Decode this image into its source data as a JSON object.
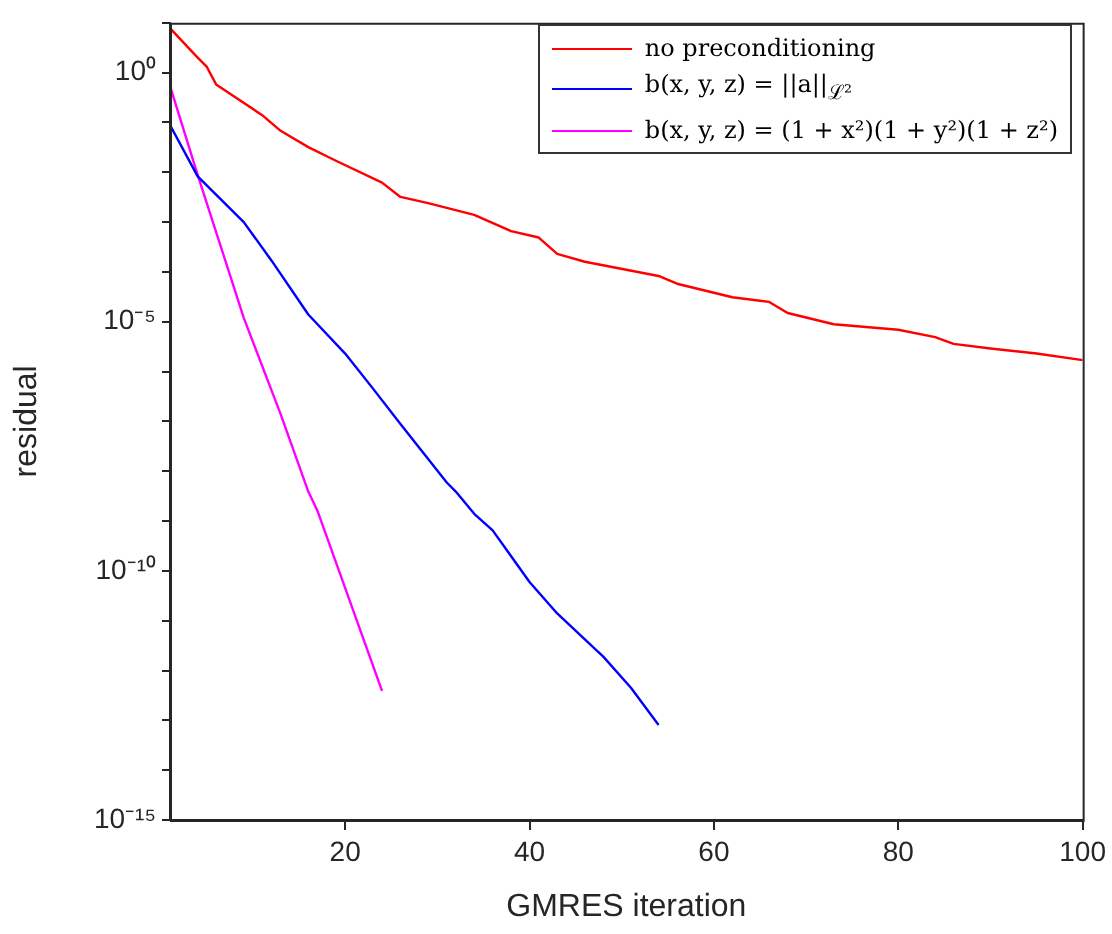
{
  "chart_data": {
    "type": "line",
    "xlabel": "GMRES iteration",
    "ylabel": "residual",
    "log": "y",
    "xlim": [
      1,
      100
    ],
    "xticks": [
      20,
      40,
      60,
      80,
      100
    ],
    "ylim": [
      1e-15,
      10
    ],
    "yticks": [
      {
        "value": 1e-15,
        "label": "10⁻¹⁵"
      },
      {
        "value": 1e-14,
        "label": null
      },
      {
        "value": 1e-13,
        "label": null
      },
      {
        "value": 1e-12,
        "label": null
      },
      {
        "value": 1e-11,
        "label": null
      },
      {
        "value": 1e-10,
        "label": "10⁻¹⁰"
      },
      {
        "value": 1e-09,
        "label": null
      },
      {
        "value": 1e-08,
        "label": null
      },
      {
        "value": 1e-07,
        "label": null
      },
      {
        "value": 1e-06,
        "label": null
      },
      {
        "value": 1e-05,
        "label": "10⁻⁵"
      },
      {
        "value": 0.0001,
        "label": null
      },
      {
        "value": 0.001,
        "label": null
      },
      {
        "value": 0.01,
        "label": null
      },
      {
        "value": 0.1,
        "label": null
      },
      {
        "value": 1,
        "label": "10⁰"
      },
      {
        "value": 10,
        "label": null
      }
    ],
    "grid": false,
    "legend": "top right",
    "line_style": "solid",
    "series": [
      {
        "name": "no preconditioning",
        "color": "#ff0000",
        "x": [
          1,
          4,
          5,
          6,
          11,
          13,
          16,
          19,
          24,
          26,
          29,
          34,
          38,
          41,
          43,
          46,
          54,
          56,
          62,
          66,
          68,
          73,
          80,
          84,
          86,
          90,
          95,
          100
        ],
        "values": [
          7.8,
          2.0,
          1.3,
          0.58,
          0.14,
          0.068,
          0.032,
          0.017,
          0.0062,
          0.0032,
          0.0024,
          0.0014,
          0.00066,
          0.00049,
          0.00023,
          0.00016,
          8.3e-05,
          5.8e-05,
          3.1e-05,
          2.5e-05,
          1.5e-05,
          8.9e-06,
          6.9e-06,
          4.9e-06,
          3.6e-06,
          2.9e-06,
          2.3e-06,
          1.7e-06
        ]
      },
      {
        "name": "b(x, y, z) = ||a||$_{ℒ²}$",
        "color": "#0000ff",
        "x": [
          1,
          4,
          9,
          12,
          16,
          17,
          20,
          23,
          26,
          31,
          32,
          34,
          36,
          40,
          43,
          46,
          48,
          51,
          54
        ],
        "values": [
          0.089,
          0.0083,
          0.001,
          0.00017,
          1.4e-05,
          8.9e-06,
          2.3e-06,
          4.6e-07,
          8.9e-08,
          6e-09,
          3.9e-09,
          1.4e-09,
          6.5e-10,
          6e-11,
          1.4e-11,
          4.2e-12,
          1.9e-12,
          4.5e-13,
          8.1e-14
        ]
      },
      {
        "name": "b(x, y, z) = (1 + x²)(1 + y²)(1 + z²)",
        "color": "#ff00ff",
        "x": [
          1,
          4,
          9,
          13,
          16,
          17,
          24
        ],
        "values": [
          0.54,
          0.0089,
          1.2e-05,
          1.4e-07,
          3.9e-09,
          1.6e-09,
          3.9e-13
        ]
      }
    ]
  }
}
